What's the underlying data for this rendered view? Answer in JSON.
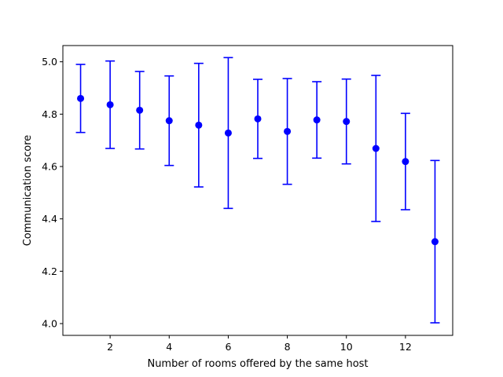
{
  "chart_data": {
    "type": "scatter",
    "title": "",
    "xlabel": "Number of rooms offered by the same host",
    "ylabel": "Communication score",
    "xlim": [
      0.4,
      13.6
    ],
    "ylim": [
      3.955,
      5.062
    ],
    "xticks": [
      2,
      4,
      6,
      8,
      10,
      12
    ],
    "yticks": [
      4.0,
      4.2,
      4.4,
      4.6,
      4.8,
      5.0
    ],
    "xtick_labels": [
      "2",
      "4",
      "6",
      "8",
      "10",
      "12"
    ],
    "ytick_labels": [
      "4.0",
      "4.2",
      "4.4",
      "4.6",
      "4.8",
      "5.0"
    ],
    "grid": false,
    "marker_color": "#0000ff",
    "points": [
      {
        "x": 1,
        "y": 4.86,
        "lower": 4.73,
        "upper": 4.99
      },
      {
        "x": 2,
        "y": 4.836,
        "lower": 4.669,
        "upper": 5.003
      },
      {
        "x": 3,
        "y": 4.815,
        "lower": 4.667,
        "upper": 4.963
      },
      {
        "x": 4,
        "y": 4.775,
        "lower": 4.604,
        "upper": 4.946
      },
      {
        "x": 5,
        "y": 4.758,
        "lower": 4.522,
        "upper": 4.994
      },
      {
        "x": 6,
        "y": 4.728,
        "lower": 4.44,
        "upper": 5.016
      },
      {
        "x": 7,
        "y": 4.782,
        "lower": 4.631,
        "upper": 4.933
      },
      {
        "x": 8,
        "y": 4.734,
        "lower": 4.532,
        "upper": 4.936
      },
      {
        "x": 9,
        "y": 4.778,
        "lower": 4.632,
        "upper": 4.924
      },
      {
        "x": 10,
        "y": 4.772,
        "lower": 4.61,
        "upper": 4.934
      },
      {
        "x": 11,
        "y": 4.669,
        "lower": 4.39,
        "upper": 4.948
      },
      {
        "x": 12,
        "y": 4.619,
        "lower": 4.435,
        "upper": 4.803
      },
      {
        "x": 13,
        "y": 4.313,
        "lower": 4.003,
        "upper": 4.623
      }
    ]
  }
}
